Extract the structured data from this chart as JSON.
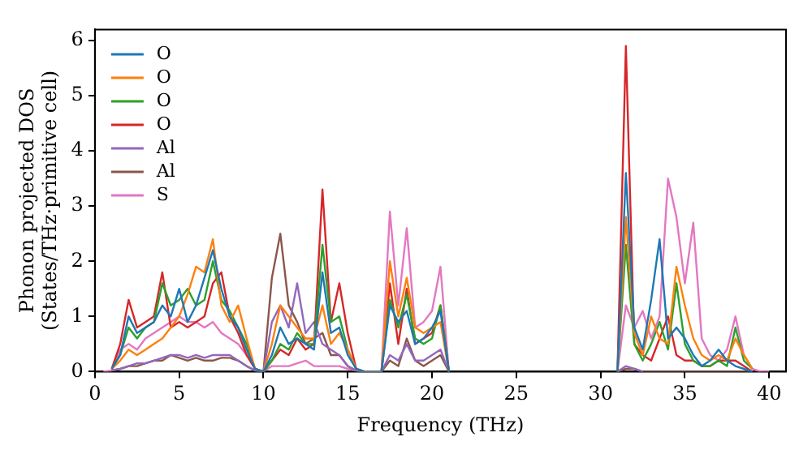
{
  "chart_data": {
    "type": "line",
    "xlabel": "Frequency (THz)",
    "ylabel": "Phonon projected DOS\n(States/THz·primitive cell)",
    "xlim": [
      0,
      41
    ],
    "ylim": [
      0,
      6.2
    ],
    "xticks": [
      0,
      5,
      10,
      15,
      20,
      25,
      30,
      35,
      40
    ],
    "yticks": [
      0,
      1,
      2,
      3,
      4,
      5,
      6
    ],
    "grid": false,
    "legend": "top left",
    "marker": "none",
    "line_style": "solid",
    "x": [
      0.5,
      1,
      1.5,
      2,
      2.5,
      3,
      3.5,
      4,
      4.5,
      5,
      5.5,
      6,
      6.5,
      7,
      7.5,
      8,
      8.5,
      9,
      9.5,
      10,
      10.5,
      11,
      11.5,
      12,
      12.5,
      13,
      13.5,
      14,
      14.5,
      15,
      15.5,
      16,
      16.5,
      17,
      17.5,
      18,
      18.5,
      19,
      19.5,
      20,
      20.5,
      21,
      21.5,
      22,
      22.5,
      23,
      23.5,
      24,
      24.5,
      25,
      25.5,
      26,
      26.5,
      27,
      27.5,
      28,
      28.5,
      29,
      29.5,
      30,
      30.5,
      31,
      31.5,
      32,
      32.5,
      33,
      33.5,
      34,
      34.5,
      35,
      35.5,
      36,
      36.5,
      37,
      37.5,
      38,
      38.5,
      39,
      39.5,
      40
    ],
    "series": [
      {
        "name": "O",
        "color": "#1f77b4",
        "values": [
          null,
          0.05,
          0.3,
          1.0,
          0.7,
          0.8,
          0.9,
          1.2,
          1.0,
          1.5,
          0.9,
          1.2,
          1.7,
          2.2,
          1.5,
          1.0,
          0.8,
          0.4,
          0.05,
          0,
          0.3,
          0.8,
          0.5,
          0.6,
          0.5,
          0.4,
          1.8,
          0.7,
          0.8,
          0.3,
          0.05,
          0,
          0,
          0,
          1.2,
          0.9,
          1.1,
          0.5,
          0.6,
          0.8,
          1.1,
          0,
          null,
          null,
          null,
          null,
          null,
          null,
          null,
          null,
          null,
          null,
          null,
          null,
          null,
          null,
          null,
          null,
          null,
          null,
          null,
          0,
          3.6,
          0.8,
          0.4,
          1.3,
          2.4,
          0.6,
          0.8,
          0.6,
          0.3,
          0.1,
          0.2,
          0.4,
          0.2,
          0.1,
          0.05,
          0,
          null,
          null
        ]
      },
      {
        "name": "O",
        "color": "#ff7f0e",
        "values": [
          null,
          0.05,
          0.2,
          0.4,
          0.3,
          0.4,
          0.5,
          0.6,
          0.8,
          1.0,
          1.4,
          1.9,
          1.8,
          2.4,
          1.2,
          0.9,
          1.2,
          0.6,
          0.05,
          0,
          0.5,
          1.2,
          1.0,
          0.8,
          0.6,
          0.6,
          1.2,
          0.5,
          0.7,
          0.4,
          0.05,
          0,
          0,
          0,
          2.0,
          1.0,
          1.7,
          0.8,
          0.7,
          0.8,
          0.9,
          0,
          null,
          null,
          null,
          null,
          null,
          null,
          null,
          null,
          null,
          null,
          null,
          null,
          null,
          null,
          null,
          null,
          null,
          null,
          null,
          0,
          2.8,
          0.7,
          0.3,
          1.0,
          0.6,
          0.5,
          1.9,
          1.2,
          0.6,
          0.3,
          0.2,
          0.3,
          0.2,
          0.6,
          0.3,
          0.05,
          null,
          null
        ]
      },
      {
        "name": "O",
        "color": "#2ca02c",
        "values": [
          null,
          0.05,
          0.3,
          0.8,
          0.6,
          0.8,
          0.9,
          1.6,
          1.2,
          1.3,
          1.5,
          1.2,
          1.3,
          2.0,
          1.3,
          1.1,
          0.8,
          0.5,
          0.05,
          0,
          0.2,
          0.5,
          0.4,
          0.7,
          0.5,
          0.5,
          2.3,
          0.9,
          1.0,
          0.4,
          0.05,
          0,
          0,
          0,
          1.3,
          0.8,
          1.4,
          0.6,
          0.5,
          0.6,
          1.2,
          0,
          null,
          null,
          null,
          null,
          null,
          null,
          null,
          null,
          null,
          null,
          null,
          null,
          null,
          null,
          null,
          null,
          null,
          null,
          null,
          0,
          2.3,
          0.5,
          0.2,
          0.5,
          0.9,
          0.4,
          1.6,
          0.5,
          0.2,
          0.1,
          0.1,
          0.2,
          0.1,
          0.8,
          0.2,
          0.05,
          null,
          null
        ]
      },
      {
        "name": "O",
        "color": "#d62728",
        "values": [
          null,
          0.05,
          0.5,
          1.3,
          0.8,
          0.9,
          1.0,
          1.8,
          0.8,
          0.9,
          0.8,
          0.9,
          1.0,
          1.6,
          1.8,
          1.0,
          0.7,
          0.3,
          0.05,
          0,
          0.2,
          0.4,
          0.3,
          0.6,
          0.4,
          0.5,
          3.3,
          0.9,
          1.6,
          0.7,
          0.05,
          0,
          0,
          0,
          1.6,
          0.5,
          1.5,
          0.5,
          0.6,
          0.7,
          1.2,
          0,
          null,
          null,
          null,
          null,
          null,
          null,
          null,
          null,
          null,
          null,
          null,
          null,
          null,
          null,
          null,
          null,
          null,
          null,
          null,
          0,
          5.9,
          0.5,
          0.3,
          0.2,
          0.6,
          1.0,
          0.3,
          0.2,
          0.2,
          0.1,
          0.1,
          0.2,
          0.2,
          0.2,
          0.1,
          0,
          null,
          null
        ]
      },
      {
        "name": "Al",
        "color": "#9467bd",
        "values": [
          null,
          0.02,
          0.05,
          0.1,
          0.15,
          0.15,
          0.2,
          0.25,
          0.3,
          0.3,
          0.25,
          0.3,
          0.25,
          0.3,
          0.3,
          0.3,
          0.2,
          0.1,
          0.02,
          0,
          0.9,
          1.2,
          0.8,
          1.6,
          0.7,
          0.9,
          0.5,
          0.4,
          0.3,
          0.1,
          0.02,
          0,
          0,
          0,
          0.3,
          0.2,
          0.5,
          0.2,
          0.2,
          0.3,
          0.4,
          0,
          null,
          null,
          null,
          null,
          null,
          null,
          null,
          null,
          null,
          null,
          null,
          null,
          null,
          null,
          null,
          null,
          null,
          null,
          null,
          0,
          0.1,
          0.05,
          0,
          null,
          null,
          null,
          null,
          null,
          null,
          null,
          null,
          null,
          null,
          null,
          null,
          null,
          null,
          null
        ]
      },
      {
        "name": "Al",
        "color": "#8c564b",
        "values": [
          null,
          0.02,
          0.05,
          0.1,
          0.1,
          0.15,
          0.2,
          0.2,
          0.3,
          0.25,
          0.2,
          0.25,
          0.2,
          0.2,
          0.25,
          0.25,
          0.2,
          0.1,
          0.02,
          0,
          1.7,
          2.5,
          1.2,
          0.9,
          0.5,
          0.6,
          0.7,
          0.3,
          0.3,
          0.1,
          0.02,
          0,
          0,
          0,
          0.2,
          0.1,
          0.6,
          0.2,
          0.1,
          0.2,
          0.3,
          0,
          null,
          null,
          null,
          null,
          null,
          null,
          null,
          null,
          null,
          null,
          null,
          null,
          null,
          null,
          null,
          null,
          null,
          null,
          null,
          0,
          0.05,
          0.05,
          0,
          0,
          0,
          0,
          0,
          0,
          0,
          0,
          0,
          0,
          0,
          0,
          0,
          0,
          null,
          null
        ]
      },
      {
        "name": "S",
        "color": "#e377c2",
        "values": [
          0,
          0.02,
          0.4,
          0.5,
          0.4,
          0.6,
          0.7,
          0.8,
          0.9,
          1.0,
          0.9,
          0.9,
          0.8,
          0.9,
          0.7,
          0.6,
          0.5,
          0.3,
          0.05,
          0,
          0.1,
          0.1,
          0.1,
          0.15,
          0.2,
          0.1,
          0.1,
          0.1,
          0.1,
          0.05,
          0.02,
          0,
          0,
          0,
          2.9,
          1.2,
          2.6,
          0.8,
          0.9,
          1.1,
          1.9,
          0,
          null,
          null,
          null,
          null,
          null,
          null,
          null,
          null,
          null,
          null,
          null,
          null,
          null,
          null,
          null,
          null,
          null,
          null,
          null,
          0,
          1.2,
          0.8,
          1.1,
          0.6,
          1.0,
          3.5,
          2.8,
          1.6,
          2.7,
          0.6,
          0.3,
          0.2,
          0.4,
          1.0,
          0.3,
          0.05,
          0,
          0
        ]
      }
    ]
  }
}
